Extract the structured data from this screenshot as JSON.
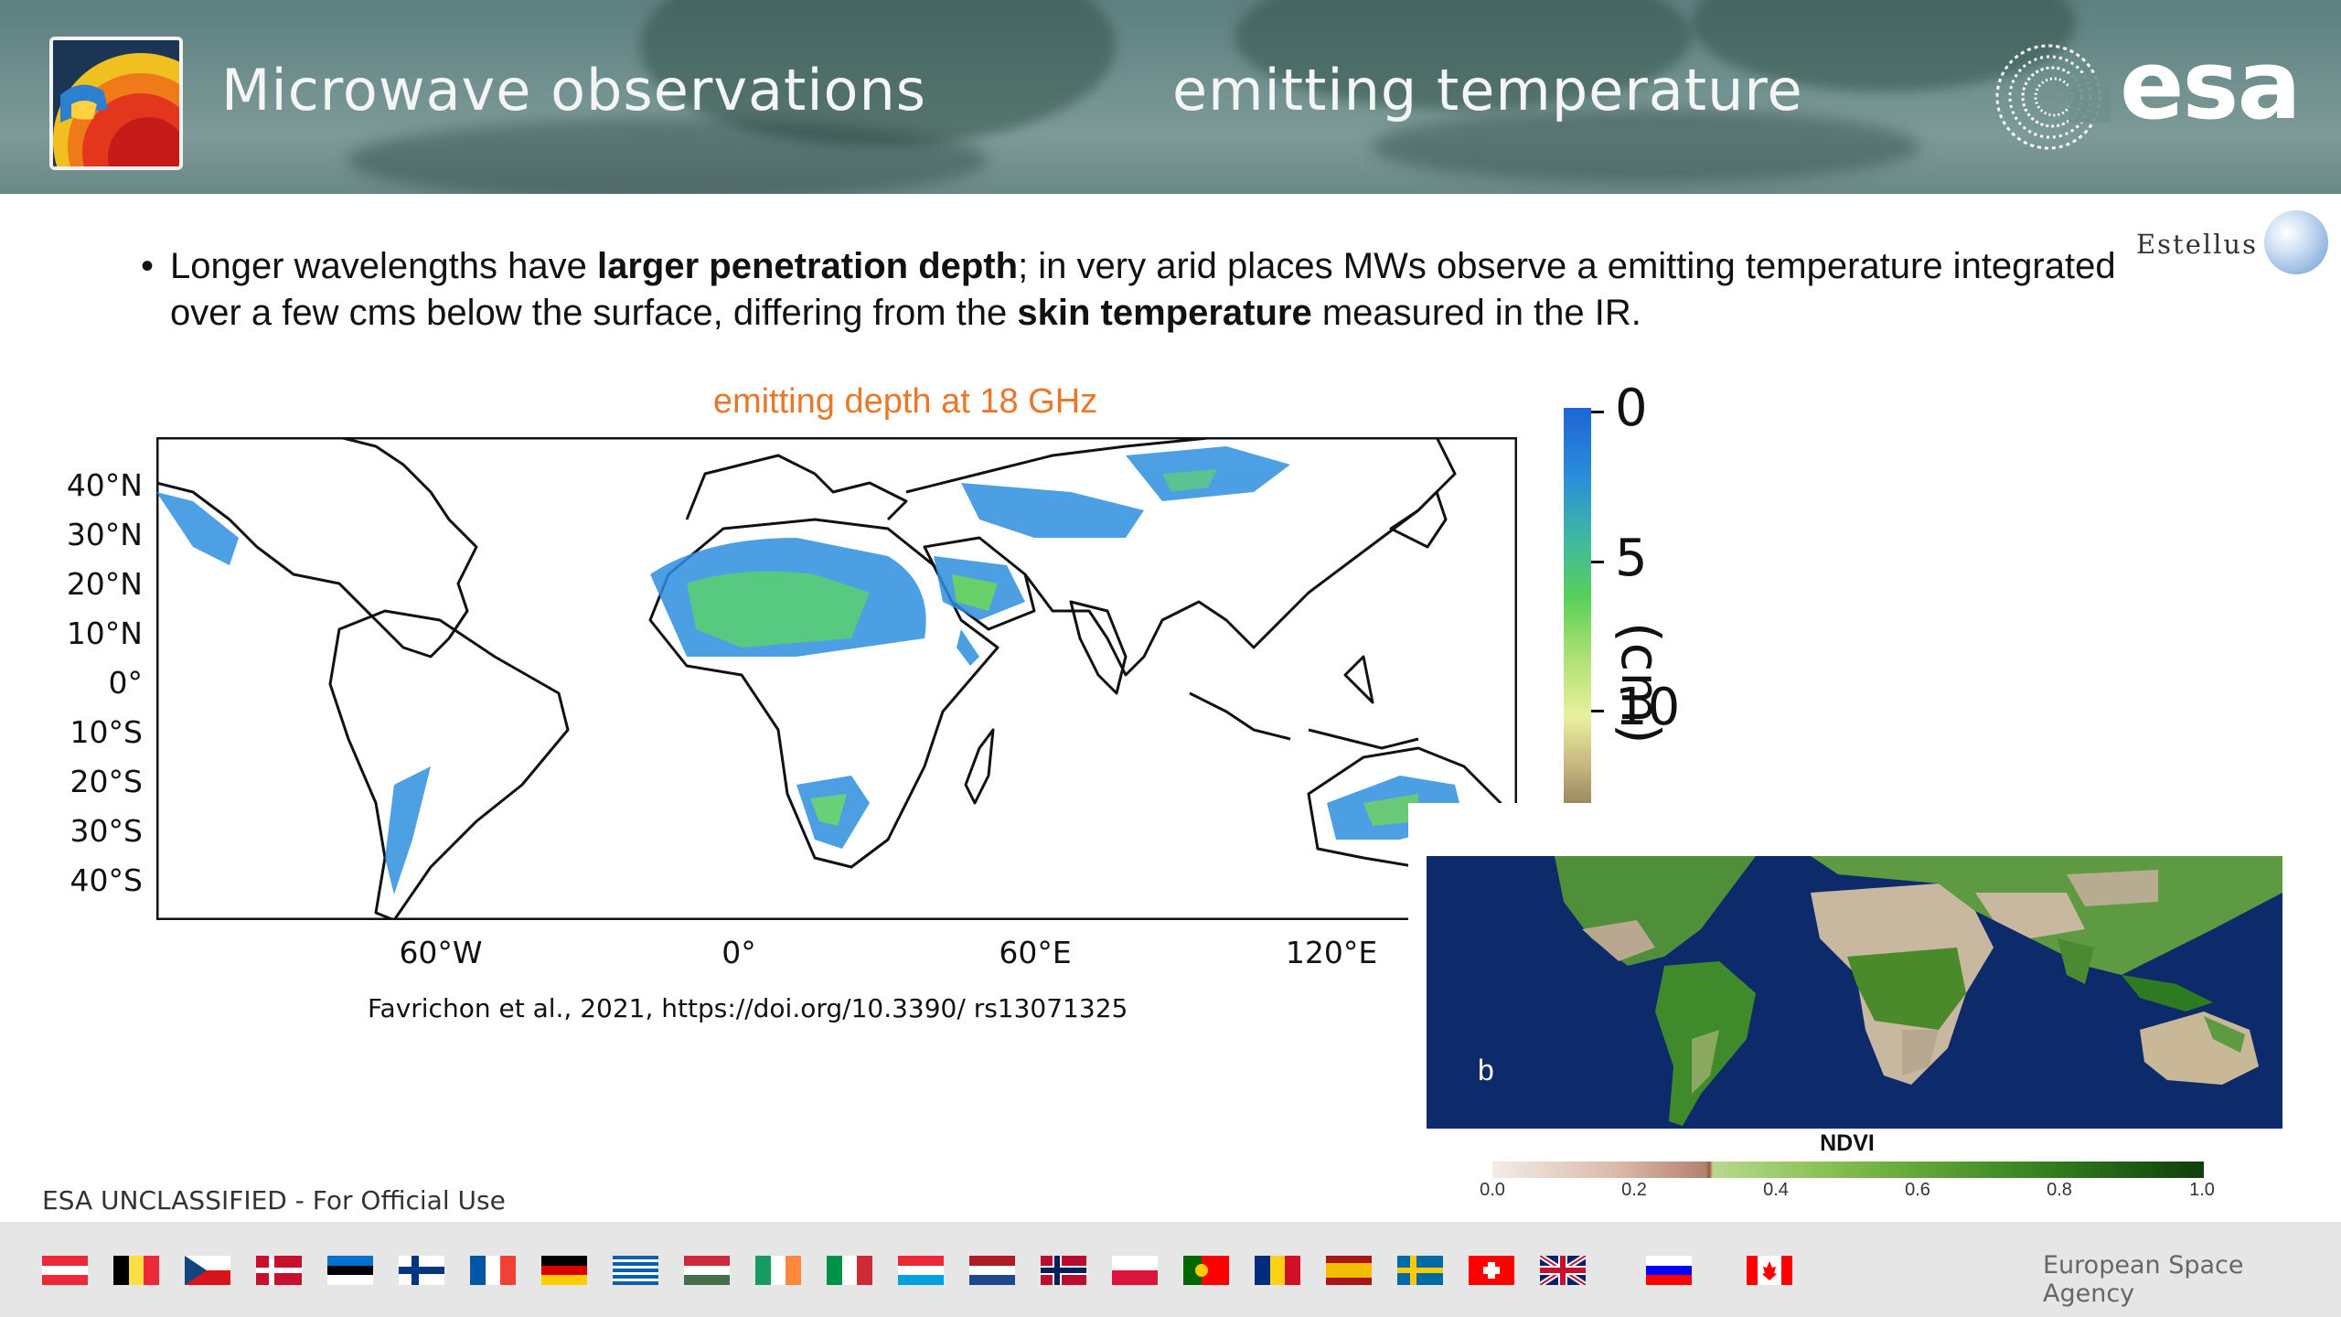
{
  "header": {
    "title_left": "Microwave observations",
    "title_right": "emitting temperature",
    "logo_text": "esa",
    "thumbnail_icon": "earth-thermal-thumbnail-icon",
    "esa_icon": "esa-spiral-logo-icon"
  },
  "body": {
    "bullet_parts": [
      "Longer wavelengths have ",
      "larger penetration depth",
      "; in very arid places MWs observe a emitting temperature integrated over a few cms below the surface, differing from the ",
      "skin temperature",
      " measured in the IR."
    ]
  },
  "estellus": {
    "text": "Estellus",
    "icon": "estellus-globe-icon"
  },
  "map1": {
    "title": "emitting depth at 18 GHz",
    "lat_labels": [
      "40°N",
      "30°N",
      "20°N",
      "10°N",
      "0°",
      "10°S",
      "20°S",
      "30°S",
      "40°S"
    ],
    "lon_labels": [
      "60°W",
      "0°",
      "60°E",
      "120°E"
    ],
    "citation": "Favrichon et al., 2021, https://doi.org/10.3390/ rs13071325"
  },
  "colorbar": {
    "labels": [
      "0",
      "5",
      "10"
    ],
    "unit": "(cm)"
  },
  "ndvi": {
    "panel_label": "b",
    "title": "NDVI",
    "ticks": [
      "0.0",
      "0.2",
      "0.4",
      "0.6",
      "0.8",
      "1.0"
    ]
  },
  "footer": {
    "classification": "ESA UNCLASSIFIED - For Official Use",
    "agency": "European Space Agency",
    "flags": [
      "austria",
      "belgium",
      "czech-republic",
      "denmark",
      "estonia",
      "finland",
      "france",
      "germany",
      "greece",
      "hungary",
      "ireland",
      "italy",
      "luxembourg",
      "netherlands",
      "norway",
      "poland",
      "portugal",
      "romania",
      "spain",
      "sweden",
      "switzerland",
      "united-kingdom",
      "slovenia",
      "canada"
    ]
  }
}
